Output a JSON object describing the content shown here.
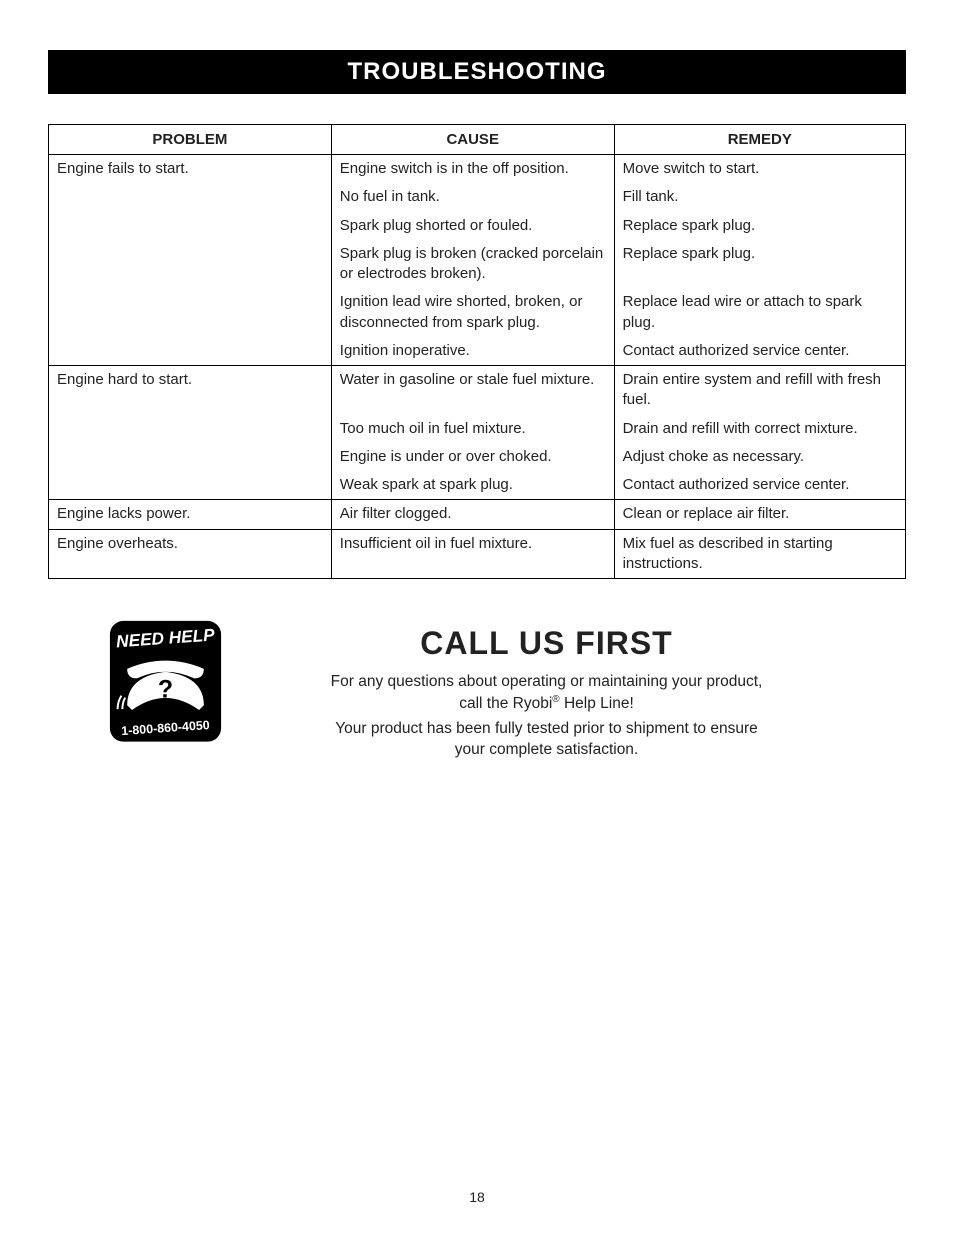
{
  "section_title": "TROUBLESHOOTING",
  "table": {
    "headers": {
      "problem": "PROBLEM",
      "cause": "CAUSE",
      "remedy": "REMEDY"
    },
    "groups": [
      {
        "problem": "Engine fails to start.",
        "rows": [
          {
            "cause": "Engine switch is in the off position.",
            "remedy": "Move switch to start."
          },
          {
            "cause": "No fuel in tank.",
            "remedy": "Fill tank."
          },
          {
            "cause": "Spark plug shorted or fouled.",
            "remedy": "Replace spark plug."
          },
          {
            "cause": "Spark plug is broken (cracked porcelain or electrodes broken).",
            "remedy": "Replace spark plug."
          },
          {
            "cause": "Ignition lead wire shorted, broken, or disconnected from spark plug.",
            "remedy": "Replace lead wire or attach to spark plug."
          },
          {
            "cause": "Ignition inoperative.",
            "remedy": "Contact authorized service center."
          }
        ]
      },
      {
        "problem": "Engine hard to start.",
        "rows": [
          {
            "cause": "Water in gasoline or stale fuel mixture.",
            "remedy": "Drain entire system and refill with fresh fuel."
          },
          {
            "cause": "Too much oil in fuel mixture.",
            "remedy": "Drain and refill with correct mixture."
          },
          {
            "cause": "Engine is under or over choked.",
            "remedy": "Adjust choke as necessary."
          },
          {
            "cause": "Weak spark at spark plug.",
            "remedy": "Contact authorized service center."
          }
        ]
      },
      {
        "problem": "Engine lacks power.",
        "rows": [
          {
            "cause": "Air filter clogged.",
            "remedy": "Clean or replace air filter."
          }
        ]
      },
      {
        "problem": "Engine overheats.",
        "rows": [
          {
            "cause": "Insufficient oil in fuel mixture.",
            "remedy": "Mix fuel as described in starting instructions."
          }
        ]
      }
    ]
  },
  "badge": {
    "top_text": "NEED HELP",
    "phone": "1-800-860-4050"
  },
  "callout": {
    "title": "CALL US FIRST",
    "line1a": "For any questions about operating or maintaining your product,",
    "line1b_pre": "call the Ryobi",
    "line1b_post": " Help Line!",
    "reg_mark": "®",
    "line2a": "Your product has been fully tested prior to shipment to ensure",
    "line2b": "your complete satisfaction."
  },
  "page_number": "18"
}
